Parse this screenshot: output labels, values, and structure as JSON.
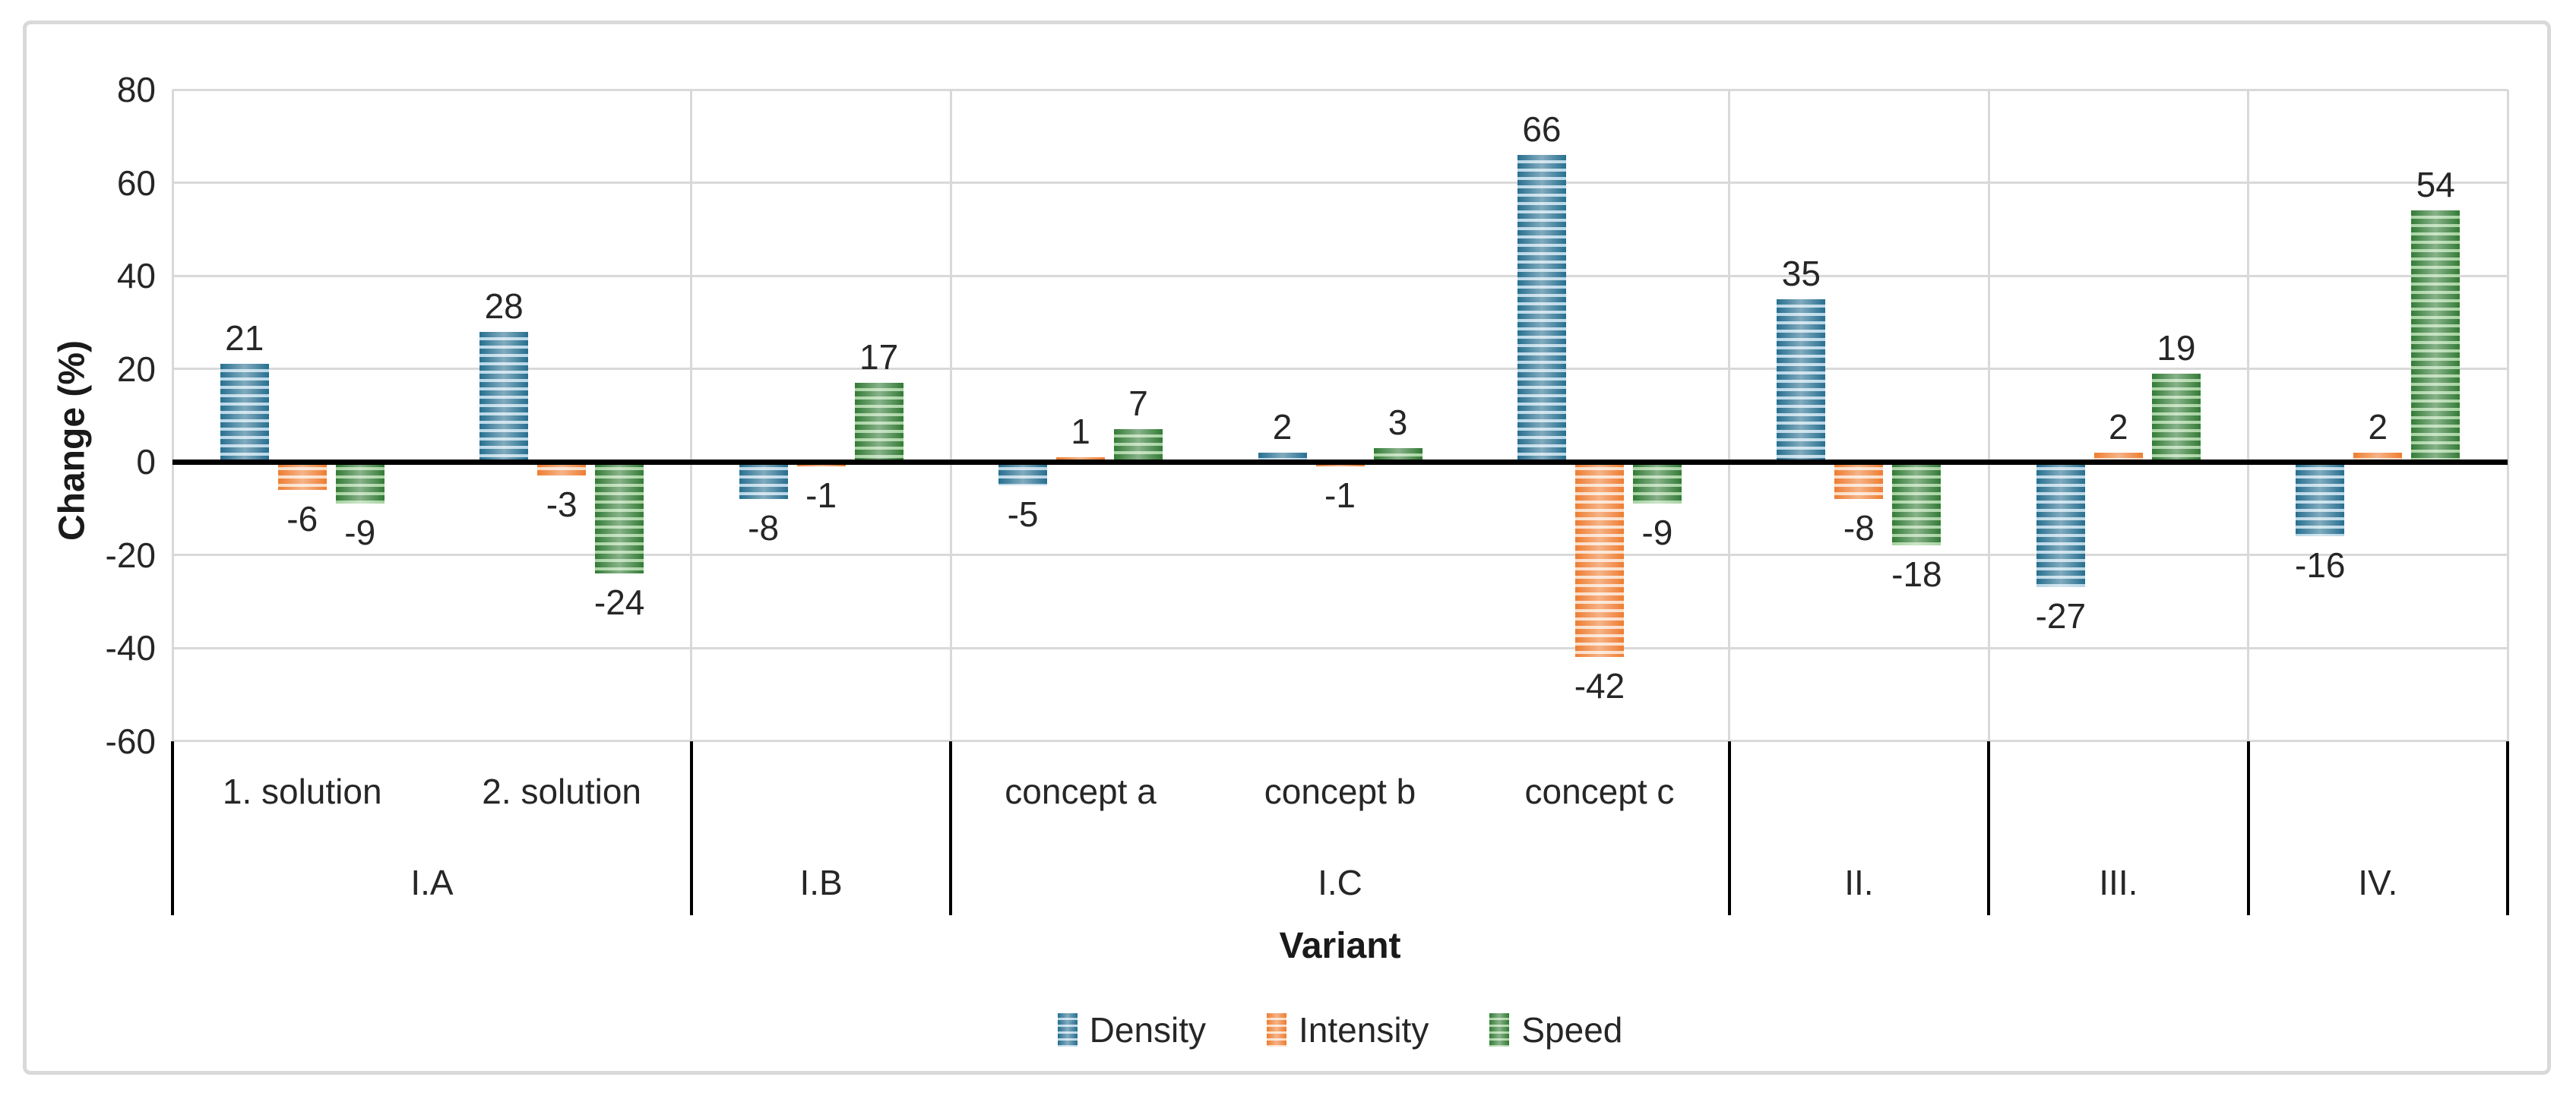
{
  "chart_data": {
    "type": "bar",
    "title": "",
    "xlabel": "Variant",
    "ylabel": "Change (%)",
    "ylim": [
      -60,
      80
    ],
    "ytick_step": 20,
    "grid": true,
    "zero_line": true,
    "legend_position": "bottom",
    "bar_fill_pattern": "horizontal-stripes",
    "axis_tick_labels": [
      "80",
      "60",
      "40",
      "20",
      "0",
      "-20",
      "-40",
      "-60"
    ],
    "axis_tick_values": [
      80,
      60,
      40,
      20,
      0,
      -20,
      -40,
      -60
    ],
    "groups": [
      {
        "label": "I.A",
        "subcategories": [
          "1. solution",
          "2. solution"
        ]
      },
      {
        "label": "I.B",
        "subcategories": [
          ""
        ]
      },
      {
        "label": "I.C",
        "subcategories": [
          "concept a",
          "concept b",
          "concept c"
        ]
      },
      {
        "label": "II.",
        "subcategories": [
          ""
        ]
      },
      {
        "label": "III.",
        "subcategories": [
          ""
        ]
      },
      {
        "label": "IV.",
        "subcategories": [
          ""
        ]
      }
    ],
    "series": [
      {
        "name": "Density",
        "color_dark": "#276F90",
        "color_light": "#B8D6E6",
        "values": [
          21,
          28,
          -8,
          -5,
          2,
          66,
          35,
          -27,
          -16
        ]
      },
      {
        "name": "Intensity",
        "color_dark": "#EE7D31",
        "color_light": "#FADCC6",
        "values": [
          -6,
          -3,
          -1,
          1,
          -1,
          -42,
          -8,
          2,
          2
        ]
      },
      {
        "name": "Speed",
        "color_dark": "#337B36",
        "color_light": "#A6D2A0",
        "values": [
          -9,
          -24,
          17,
          7,
          3,
          -9,
          -18,
          19,
          54
        ]
      }
    ]
  },
  "style_colors": {
    "gridline": "#D9D9D9",
    "figure_border": "#D9D9D9",
    "zero_line": "#000000",
    "category_separator": "#000000",
    "text": "#262626"
  }
}
